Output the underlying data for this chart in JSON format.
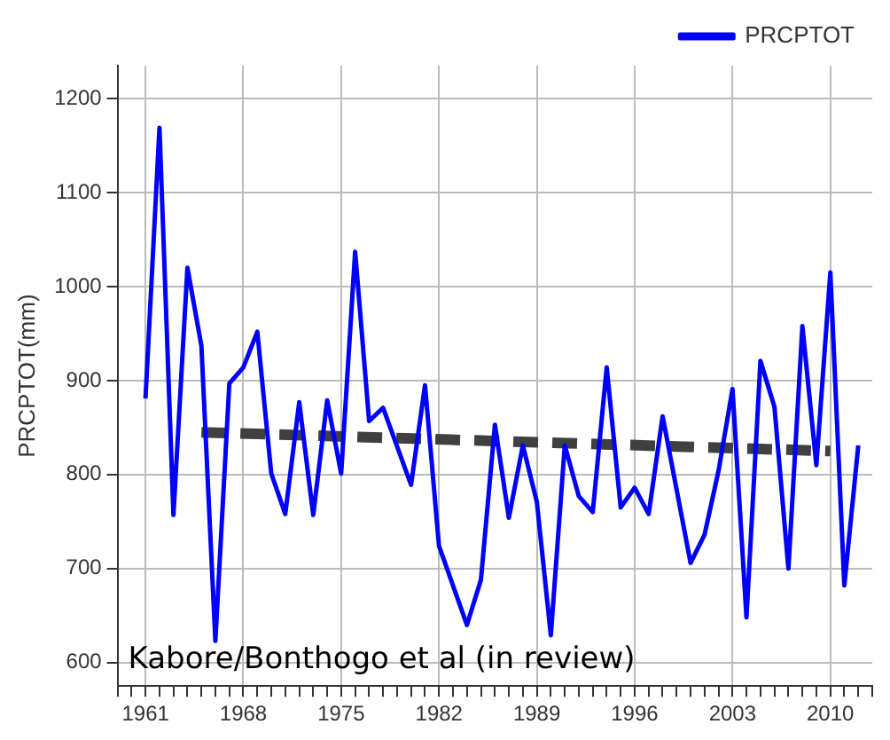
{
  "chart_data": {
    "type": "line",
    "ylabel": "PRCPTOT(mm)",
    "annotations": [
      "Kabore/Bonthogo et al (in review)"
    ],
    "series": [
      {
        "name": "PRCPTOT",
        "color": "#0000ff",
        "x": [
          1961,
          1962,
          1963,
          1964,
          1965,
          1966,
          1967,
          1968,
          1969,
          1970,
          1971,
          1972,
          1973,
          1974,
          1975,
          1976,
          1977,
          1978,
          1980,
          1981,
          1982,
          1984,
          1985,
          1986,
          1987,
          1988,
          1989,
          1990,
          1991,
          1992,
          1993,
          1994,
          1995,
          1996,
          1997,
          1998,
          2000,
          2001,
          2002,
          2003,
          2004,
          2005,
          2006,
          2007,
          2008,
          2009,
          2010,
          2011,
          2012
        ],
        "values": [
          881,
          1169,
          757,
          1020,
          937,
          623,
          897,
          914,
          952,
          801,
          758,
          877,
          757,
          879,
          801,
          1037,
          857,
          871,
          789,
          895,
          724,
          640,
          688,
          853,
          754,
          831,
          771,
          629,
          831,
          777,
          760,
          914,
          765,
          786,
          758,
          862,
          706,
          736,
          804,
          891,
          648,
          921,
          872,
          700,
          958,
          810,
          1015,
          682,
          831
        ]
      },
      {
        "type": "line",
        "color": "#404040",
        "line_style": "dashed",
        "x": [
          1965,
          2010
        ],
        "values": [
          845,
          825
        ]
      }
    ],
    "xlim": [
      1959,
      2013
    ],
    "ylim": [
      575,
      1235
    ],
    "xticks": [
      {
        "value": 1959,
        "label": null
      },
      {
        "value": 1960,
        "label": null
      },
      1961,
      {
        "value": 1962,
        "label": null
      },
      {
        "value": 1963,
        "label": null
      },
      {
        "value": 1964,
        "label": null
      },
      {
        "value": 1965,
        "label": null
      },
      {
        "value": 1966,
        "label": null
      },
      {
        "value": 1967,
        "label": null
      },
      1968,
      {
        "value": 1969,
        "label": null
      },
      {
        "value": 1970,
        "label": null
      },
      {
        "value": 1971,
        "label": null
      },
      {
        "value": 1972,
        "label": null
      },
      {
        "value": 1973,
        "label": null
      },
      {
        "value": 1974,
        "label": null
      },
      1975,
      {
        "value": 1976,
        "label": null
      },
      {
        "value": 1977,
        "label": null
      },
      {
        "value": 1978,
        "label": null
      },
      {
        "value": 1979,
        "label": null
      },
      {
        "value": 1980,
        "label": null
      },
      {
        "value": 1981,
        "label": null
      },
      1982,
      {
        "value": 1983,
        "label": null
      },
      {
        "value": 1984,
        "label": null
      },
      {
        "value": 1985,
        "label": null
      },
      {
        "value": 1986,
        "label": null
      },
      {
        "value": 1987,
        "label": null
      },
      {
        "value": 1988,
        "label": null
      },
      1989,
      {
        "value": 1990,
        "label": null
      },
      {
        "value": 1991,
        "label": null
      },
      {
        "value": 1992,
        "label": null
      },
      {
        "value": 1993,
        "label": null
      },
      {
        "value": 1994,
        "label": null
      },
      {
        "value": 1995,
        "label": null
      },
      1996,
      {
        "value": 1997,
        "label": null
      },
      {
        "value": 1998,
        "label": null
      },
      {
        "value": 1999,
        "label": null
      },
      {
        "value": 2000,
        "label": null
      },
      {
        "value": 2001,
        "label": null
      },
      {
        "value": 2002,
        "label": null
      },
      2003,
      {
        "value": 2004,
        "label": null
      },
      {
        "value": 2005,
        "label": null
      },
      {
        "value": 2006,
        "label": null
      },
      {
        "value": 2007,
        "label": null
      },
      {
        "value": 2008,
        "label": null
      },
      {
        "value": 2009,
        "label": null
      },
      2010,
      {
        "value": 2011,
        "label": null
      },
      {
        "value": 2012,
        "label": null
      },
      {
        "value": 2013,
        "label": null
      }
    ],
    "yticks": [
      600,
      700,
      800,
      900,
      1000,
      1100,
      1200
    ],
    "grid": true,
    "legend": "top right",
    "marker": "none",
    "line_style": "solid"
  }
}
